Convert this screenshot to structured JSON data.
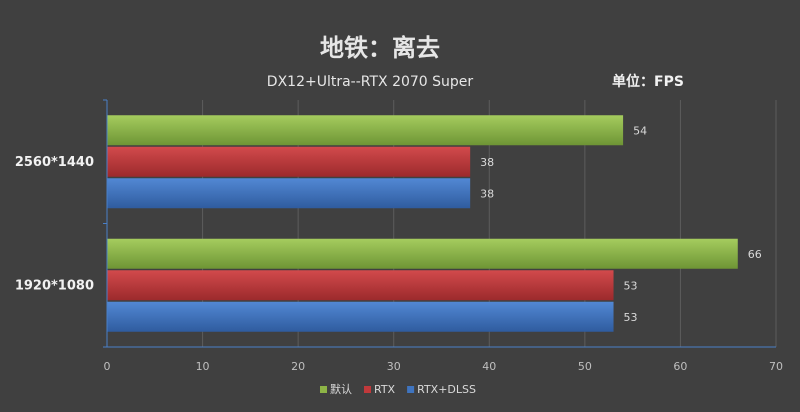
{
  "chart_data": {
    "type": "bar",
    "orientation": "horizontal",
    "title": "地铁：离去",
    "subtitle": "DX12+Ultra--RTX 2070 Super",
    "unit_label": "单位：FPS",
    "categories": [
      "2560*1440",
      "1920*1080"
    ],
    "series": [
      {
        "name": "默认",
        "values": [
          54,
          66
        ],
        "color": "#8db446"
      },
      {
        "name": "RTX",
        "values": [
          38,
          53
        ],
        "color": "#c0393b"
      },
      {
        "name": "RTX+DLSS",
        "values": [
          38,
          53
        ],
        "color": "#3f74bf"
      }
    ],
    "xlim": [
      0,
      70
    ],
    "xticks": [
      0,
      10,
      20,
      30,
      40,
      50,
      60,
      70
    ],
    "grid": true,
    "legend": "bottom"
  }
}
